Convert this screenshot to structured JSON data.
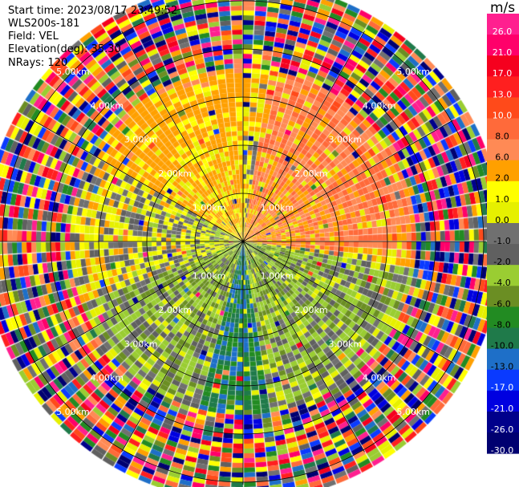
{
  "header": {
    "start_time": "Start time: 2023/08/17 23:49:52",
    "instrument": "WLS200s-181",
    "field": "Field: VEL",
    "elevation": "Elevation(deg): 35.30",
    "nrays": "NRays: 120"
  },
  "colorbar": {
    "unit": "m/s",
    "ticks": [
      "26.0",
      "21.0",
      "17.0",
      "13.0",
      "10.0",
      "8.0",
      "6.0",
      "2.0",
      "1.0",
      "0.0",
      "-1.0",
      "-2.0",
      "-4.0",
      "-6.0",
      "-8.0",
      "-10.0",
      "-13.0",
      "-17.0",
      "-21.0",
      "-26.0",
      "-30.0"
    ],
    "colors": [
      "#ff1f8f",
      "#ff006a",
      "#f5001e",
      "#ff1f1f",
      "#ff4a1a",
      "#ff6a3a",
      "#ff8a55",
      "#ffa000",
      "#ffff00",
      "#e6f000",
      "#707070",
      "#606060",
      "#9acd32",
      "#6b8e23",
      "#228b22",
      "#1f7a4a",
      "#1e6fc8",
      "#0a3aff",
      "#0000e0",
      "#00008b",
      "#000070"
    ]
  },
  "chart_data": {
    "type": "heatmap",
    "projection": "polar PPI",
    "field": "VEL",
    "units": "m/s",
    "nrays": 120,
    "elevation_deg": 35.3,
    "ring_labels": [
      "1.00km",
      "2.00km",
      "3.00km",
      "4.00km",
      "5.00km"
    ],
    "max_range_km": 5.4,
    "gates_per_ray": 54,
    "sectors": [
      {
        "name": "north-east",
        "azimuth_deg": [
          10,
          95
        ],
        "value_ms": 6.0
      },
      {
        "name": "north-west",
        "azimuth_deg": [
          300,
          360
        ],
        "value_ms": 2.0
      },
      {
        "name": "west",
        "azimuth_deg": [
          250,
          300
        ],
        "value_ms": -1.0
      },
      {
        "name": "south",
        "azimuth_deg": [
          100,
          250
        ],
        "value_ms": -4.0
      },
      {
        "name": "south-core",
        "azimuth_deg": [
          170,
          195
        ],
        "value_ms": -10.0
      }
    ],
    "noise_range_km": 3.6
  }
}
